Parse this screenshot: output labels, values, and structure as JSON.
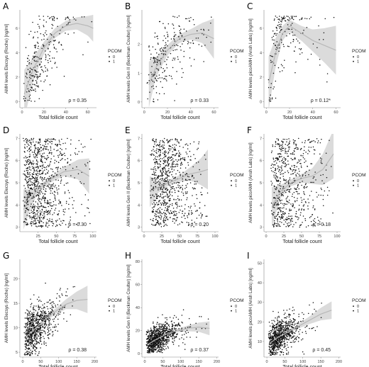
{
  "chart_data": [
    {
      "letter": "A",
      "type": "scatter",
      "xlabel": "Total follicle count",
      "ylabel": "AMH levels Elecsys (Roche) [ng/ml]",
      "xticks": [
        0,
        20,
        40,
        60
      ],
      "yticks": [
        0,
        2,
        4,
        6
      ],
      "xlim": [
        -2,
        68
      ],
      "ylim": [
        -0.5,
        7.5
      ],
      "rho": "ρ = 0.35",
      "legend": {
        "title": "PCOM",
        "entries": [
          "0",
          "1"
        ]
      },
      "fit": {
        "x": [
          2,
          10,
          20,
          30,
          40,
          50,
          60,
          65
        ],
        "y": [
          0.6,
          2.6,
          4.4,
          5.6,
          6.2,
          6.4,
          6.2,
          6.0
        ]
      },
      "ci_halfwidth": [
        2.0,
        1.0,
        0.5,
        0.4,
        0.4,
        0.5,
        0.8,
        1.1
      ],
      "points": {
        "n": 260,
        "seed": 11,
        "xmode": "gamma",
        "xmin": 1,
        "xmax": 64,
        "xscale": 20,
        "yfit": true,
        "ysd": 1.6,
        "ymin": 0,
        "ymax": 7,
        "ycap": 7
      }
    },
    {
      "letter": "B",
      "type": "scatter",
      "xlabel": "Total follicle count",
      "ylabel": "AMH levels Gen II (Beckman Coulter) [ng/ml]",
      "xticks": [
        0,
        20,
        40,
        60
      ],
      "yticks": [
        0,
        1,
        2
      ],
      "xlim": [
        -2,
        64
      ],
      "ylim": [
        -0.2,
        3.2
      ],
      "rho": "ρ = 0.33",
      "legend": {
        "title": "PCOM",
        "entries": [
          "0",
          "1"
        ]
      },
      "fit": {
        "x": [
          4,
          10,
          20,
          30,
          40,
          50,
          60
        ],
        "y": [
          0.6,
          1.2,
          1.8,
          2.2,
          2.35,
          2.4,
          2.2
        ]
      },
      "ci_halfwidth": [
        0.8,
        0.35,
        0.18,
        0.15,
        0.18,
        0.35,
        0.7
      ],
      "points": {
        "n": 240,
        "seed": 23,
        "xmode": "gamma",
        "xmin": 2,
        "xmax": 58,
        "xscale": 20,
        "yfit": true,
        "ysd": 0.55,
        "ymin": 0,
        "ymax": 3.0,
        "ycap": 3.0
      }
    },
    {
      "letter": "C",
      "type": "scatter",
      "xlabel": "Total follicle count",
      "ylabel": "AMH levels picoAMH (Ansh Labs) [ng/ml]",
      "xticks": [
        0,
        20,
        40,
        60
      ],
      "yticks": [
        0,
        2,
        4,
        6
      ],
      "xlim": [
        -2,
        64
      ],
      "ylim": [
        -0.5,
        7.5
      ],
      "rho": "ρ = 0.12*",
      "legend": {
        "title": "PCOM",
        "entries": [
          "0",
          "1"
        ]
      },
      "fit": {
        "x": [
          2,
          8,
          14,
          20,
          30,
          40,
          50,
          60
        ],
        "y": [
          1.5,
          4.0,
          5.6,
          6.2,
          5.6,
          5.0,
          4.6,
          4.2
        ]
      },
      "ci_halfwidth": [
        2.2,
        1.2,
        0.6,
        0.5,
        0.6,
        0.9,
        1.4,
        2.0
      ],
      "points": {
        "n": 180,
        "seed": 37,
        "xmode": "gamma",
        "xmin": 1,
        "xmax": 60,
        "xscale": 18,
        "yfit": true,
        "ysd": 1.7,
        "ymin": 0,
        "ymax": 7,
        "ycap": 7
      }
    },
    {
      "letter": "D",
      "type": "scatter",
      "xlabel": "Total follicle count",
      "ylabel": "AMH levels Elecsys (Roche) [ng/ml]",
      "xticks": [
        25,
        50,
        75,
        100
      ],
      "yticks": [
        3,
        4,
        5,
        6,
        7
      ],
      "xlim": [
        0,
        105
      ],
      "ylim": [
        2.8,
        7.2
      ],
      "rho": "ρ = 0.30",
      "legend": {
        "title": "PCOM",
        "entries": [
          "0",
          "1"
        ]
      },
      "fit": {
        "x": [
          5,
          15,
          25,
          40,
          60,
          80,
          95
        ],
        "y": [
          3.8,
          4.3,
          4.7,
          5.1,
          5.5,
          5.6,
          5.3
        ]
      },
      "ci_halfwidth": [
        0.9,
        0.4,
        0.15,
        0.12,
        0.2,
        0.45,
        0.8
      ],
      "points": {
        "n": 900,
        "seed": 41,
        "xmode": "gamma",
        "xmin": 4,
        "xmax": 98,
        "xscale": 30,
        "yfit": false,
        "ysd": 0,
        "ymin": 3,
        "ymax": 7,
        "ycap": 7
      }
    },
    {
      "letter": "E",
      "type": "scatter",
      "xlabel": "Total follicle count",
      "ylabel": "AMH levels Gen II (Beckman Coulter) [ng/ml]",
      "xticks": [
        0,
        25,
        50,
        75,
        100
      ],
      "yticks": [
        3,
        4,
        5,
        6,
        7
      ],
      "xlim": [
        -3,
        105
      ],
      "ylim": [
        2.8,
        7.2
      ],
      "rho": "ρ = 0.20",
      "legend": {
        "title": "PCOM",
        "entries": [
          "0",
          "1"
        ]
      },
      "fit": {
        "x": [
          8,
          20,
          35,
          50,
          65,
          80,
          90
        ],
        "y": [
          4.6,
          4.8,
          5.0,
          5.2,
          5.4,
          5.5,
          5.6
        ]
      },
      "ci_halfwidth": [
        0.7,
        0.25,
        0.12,
        0.15,
        0.3,
        0.6,
        0.9
      ],
      "points": {
        "n": 800,
        "seed": 53,
        "xmode": "gamma",
        "xmin": 8,
        "xmax": 90,
        "xscale": 28,
        "yfit": false,
        "ysd": 0,
        "ymin": 3,
        "ymax": 7,
        "ycap": 7
      }
    },
    {
      "letter": "F",
      "type": "scatter",
      "xlabel": "Total follicle count",
      "ylabel": "AMH levels picoAMH (Ansh Labs) [ng/ml]",
      "xticks": [
        0,
        25,
        50,
        75,
        100
      ],
      "yticks": [
        3,
        4,
        5,
        6,
        7
      ],
      "xlim": [
        -3,
        105
      ],
      "ylim": [
        2.8,
        7.2
      ],
      "rho": "ρ = 0.18",
      "legend": {
        "title": "PCOM",
        "entries": [
          "0",
          "1"
        ]
      },
      "fit": {
        "x": [
          8,
          20,
          35,
          50,
          65,
          80,
          95
        ],
        "y": [
          3.9,
          4.6,
          5.0,
          5.2,
          5.3,
          5.6,
          6.3
        ]
      },
      "ci_halfwidth": [
        0.9,
        0.3,
        0.15,
        0.2,
        0.35,
        0.7,
        1.1
      ],
      "points": {
        "n": 650,
        "seed": 67,
        "xmode": "gamma",
        "xmin": 6,
        "xmax": 95,
        "xscale": 28,
        "yfit": false,
        "ysd": 0,
        "ymin": 3,
        "ymax": 7,
        "ycap": 7
      }
    },
    {
      "letter": "G",
      "type": "scatter",
      "xlabel": "Total follicle count",
      "ylabel": "AMH levels Elecsys (Roche) [ng/ml]",
      "xticks": [
        0,
        50,
        100,
        150,
        200
      ],
      "yticks": [
        5,
        10,
        15,
        20
      ],
      "xlim": [
        -8,
        205
      ],
      "ylim": [
        4,
        24
      ],
      "rho": "ρ = 0.38",
      "legend": {
        "title": "PCOM",
        "entries": [
          "0",
          "1"
        ]
      },
      "fit": {
        "x": [
          8,
          30,
          60,
          90,
          120,
          150,
          180
        ],
        "y": [
          8.0,
          9.5,
          11.5,
          13.3,
          14.8,
          15.6,
          15.8
        ]
      },
      "ci_halfwidth": [
        1.0,
        0.5,
        0.4,
        0.6,
        1.0,
        1.8,
        2.8
      ],
      "points": {
        "n": 750,
        "seed": 79,
        "xmode": "gamma",
        "xmin": 4,
        "xmax": 180,
        "xscale": 38,
        "yfit": true,
        "ysd": 2.4,
        "ymin": 4.3,
        "ymax": 22,
        "ycap": 22
      }
    },
    {
      "letter": "H",
      "type": "scatter",
      "xlabel": "Total follicle count",
      "ylabel": "AMH levels Gen II (Beckman Coulter) [ng/ml]",
      "xticks": [
        0,
        50,
        100,
        150,
        200
      ],
      "yticks": [
        0,
        20,
        40,
        60,
        80
      ],
      "xlim": [
        -8,
        205
      ],
      "ylim": [
        -3,
        82
      ],
      "rho": "ρ = 0.37",
      "legend": {
        "title": "PCOM",
        "entries": [
          "0",
          "1"
        ]
      },
      "fit": {
        "x": [
          8,
          30,
          60,
          90,
          120,
          150,
          180
        ],
        "y": [
          8,
          12,
          17,
          20,
          22,
          23,
          22
        ]
      },
      "ci_halfwidth": [
        2.0,
        1.0,
        1.0,
        1.5,
        2.5,
        4.0,
        6.0
      ],
      "points": {
        "n": 900,
        "seed": 97,
        "xmode": "gamma",
        "xmin": 4,
        "xmax": 190,
        "xscale": 38,
        "yfit": true,
        "ysd": 6.0,
        "ymin": 0.5,
        "ymax": 78,
        "ycap": 80
      }
    },
    {
      "letter": "I",
      "type": "scatter",
      "xlabel": "Total follicle count",
      "ylabel": "AMH levels picoAMH (Ansh Labs) [ng/ml]",
      "xticks": [
        0,
        50,
        100,
        150,
        200
      ],
      "yticks": [
        10,
        20,
        30,
        40,
        50
      ],
      "xlim": [
        -8,
        205
      ],
      "ylim": [
        2,
        52
      ],
      "rho": "ρ = 0.45",
      "legend": {
        "title": "PCOM",
        "entries": [
          "0",
          "1"
        ]
      },
      "fit": {
        "x": [
          8,
          30,
          60,
          90,
          120,
          150,
          180
        ],
        "y": [
          9,
          12,
          15,
          18,
          21,
          24,
          26
        ]
      },
      "ci_halfwidth": [
        1.5,
        0.8,
        0.8,
        1.2,
        2.0,
        3.2,
        4.5
      ],
      "points": {
        "n": 800,
        "seed": 113,
        "xmode": "gamma",
        "xmin": 4,
        "xmax": 180,
        "xscale": 38,
        "yfit": true,
        "ysd": 4.5,
        "ymin": 3,
        "ymax": 48,
        "ycap": 48
      }
    }
  ],
  "colors": {
    "point": "#111111",
    "fit": "#b8b8b8",
    "ci": "#cfcfcf",
    "axis": "#888888"
  }
}
